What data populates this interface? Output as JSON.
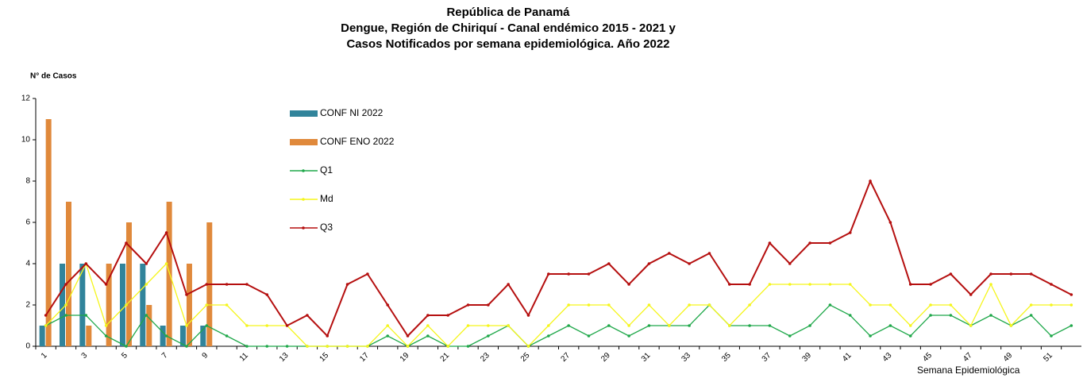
{
  "chart_data": {
    "type": "bar+line",
    "title": [
      "República de Panamá",
      "Dengue, Región de Chiriquí - Canal endémico 2015 - 2021 y",
      "Casos Notificados por semana epidemiológica. Año 2022"
    ],
    "y_label": "N° de Casos",
    "x_label": "Semana Epidemiológica",
    "categories": [
      "1",
      null,
      "3",
      null,
      "5",
      null,
      "7",
      null,
      "9",
      null,
      "11",
      null,
      "13",
      null,
      "15",
      null,
      "17",
      null,
      "19",
      null,
      "21",
      null,
      "23",
      null,
      "25",
      null,
      "27",
      null,
      "29",
      null,
      "31",
      null,
      "33",
      null,
      "35",
      null,
      "37",
      null,
      "39",
      null,
      "41",
      null,
      "43",
      null,
      "45",
      null,
      "47",
      null,
      "49",
      null,
      "51",
      null
    ],
    "ylim": [
      0,
      12
    ],
    "yticks": [
      0,
      2,
      4,
      6,
      8,
      10,
      12
    ],
    "grid": false,
    "series": [
      {
        "name": "CONF NI 2022",
        "kind": "bar",
        "color": "#31849b",
        "values": [
          1,
          4,
          4,
          0,
          4,
          4,
          1,
          1,
          1,
          null,
          null,
          null,
          null,
          null,
          null,
          null,
          null,
          null,
          null,
          null,
          null,
          null,
          null,
          null,
          null,
          null,
          null,
          null,
          null,
          null,
          null,
          null,
          null,
          null,
          null,
          null,
          null,
          null,
          null,
          null,
          null,
          null,
          null,
          null,
          null,
          null,
          null,
          null,
          null,
          null,
          null,
          null
        ]
      },
      {
        "name": "CONF ENO 2022",
        "kind": "bar",
        "color": "#e0893b",
        "values": [
          11,
          7,
          1,
          4,
          6,
          2,
          7,
          4,
          6,
          null,
          null,
          null,
          null,
          null,
          null,
          null,
          null,
          null,
          null,
          null,
          null,
          null,
          null,
          null,
          null,
          null,
          null,
          null,
          null,
          null,
          null,
          null,
          null,
          null,
          null,
          null,
          null,
          null,
          null,
          null,
          null,
          null,
          null,
          null,
          null,
          null,
          null,
          null,
          null,
          null,
          null,
          null
        ]
      },
      {
        "name": "Q1",
        "kind": "line",
        "color": "#1fa84a",
        "values": [
          1,
          1.5,
          1.5,
          0.5,
          0,
          1.5,
          0.5,
          0,
          1,
          0.5,
          0,
          0,
          0,
          0,
          0,
          0,
          0,
          0.5,
          0,
          0.5,
          0,
          0,
          0.5,
          1,
          0,
          0.5,
          1,
          0.5,
          1,
          0.5,
          1,
          1,
          1,
          2,
          1,
          1,
          1,
          0.5,
          1,
          2,
          1.5,
          0.5,
          1,
          0.5,
          1.5,
          1.5,
          1,
          1.5,
          1,
          1.5,
          0.5,
          1
        ]
      },
      {
        "name": "Md",
        "kind": "line",
        "color": "#f5f51c",
        "values": [
          1,
          2,
          4,
          1,
          2,
          3,
          4,
          1,
          2,
          2,
          1,
          1,
          1,
          0,
          0,
          0,
          0,
          1,
          0,
          1,
          0,
          1,
          1,
          1,
          0,
          1,
          2,
          2,
          2,
          1,
          2,
          1,
          2,
          2,
          1,
          2,
          3,
          3,
          3,
          3,
          3,
          2,
          2,
          1,
          2,
          2,
          1,
          3,
          1,
          2,
          2,
          2
        ]
      },
      {
        "name": "Q3",
        "kind": "line",
        "color": "#b50f0f",
        "values": [
          1.5,
          3,
          4,
          3,
          5,
          4,
          5.5,
          2.5,
          3,
          3,
          3,
          2.5,
          1,
          1.5,
          0.5,
          3,
          3.5,
          2,
          0.5,
          1.5,
          1.5,
          2,
          2,
          3,
          1.5,
          3.5,
          3.5,
          3.5,
          4,
          3,
          4,
          4.5,
          4,
          4.5,
          3,
          3,
          5,
          4,
          5,
          5,
          5.5,
          8,
          6,
          3,
          3,
          3.5,
          2.5,
          3.5,
          3.5,
          3.5,
          3,
          2.5
        ]
      }
    ]
  }
}
